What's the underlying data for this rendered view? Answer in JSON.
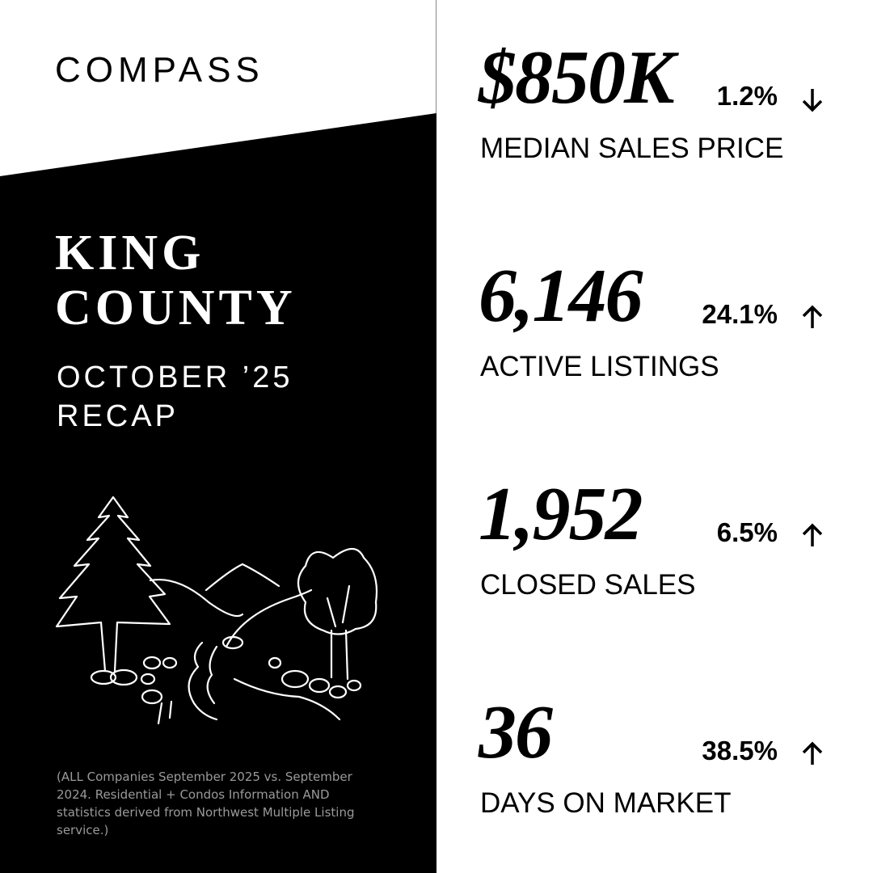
{
  "header": {
    "logo": "COMPASS"
  },
  "title": {
    "line1": "KING",
    "line2": "COUNTY",
    "subtitle1": "OCTOBER ’25",
    "subtitle2": "RECAP"
  },
  "footnote": "(ALL Companies September 2025 vs. September 2024. Residential + Condos Information AND statistics derived from Northwest Multiple Listing service.)",
  "stats": [
    {
      "value": "$850K",
      "change": "1.2%",
      "direction": "down",
      "label": "MEDIAN SALES PRICE"
    },
    {
      "value": "6,146",
      "change": "24.1%",
      "direction": "up",
      "label": "ACTIVE LISTINGS"
    },
    {
      "value": "1,952",
      "change": "6.5%",
      "direction": "up",
      "label": "CLOSED SALES"
    },
    {
      "value": "36",
      "change": "38.5%",
      "direction": "up",
      "label": "DAYS ON MARKET"
    }
  ]
}
